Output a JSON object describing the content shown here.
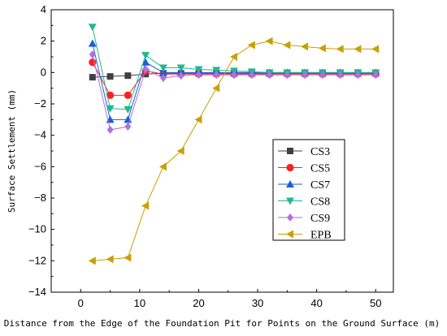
{
  "chart_data": {
    "type": "line",
    "xlabel": "Distance from the Edge of the Foundation Pit for Points on the Ground Surface (m)",
    "ylabel": "Surface Settlement (mm)",
    "xlim": [
      -5,
      53
    ],
    "ylim": [
      -14,
      4
    ],
    "xticks": [
      0,
      10,
      20,
      30,
      40,
      50
    ],
    "yticks": [
      4,
      2,
      0,
      -2,
      -4,
      -6,
      -8,
      -10,
      -12,
      -14
    ],
    "grid": false,
    "legend_position": "center-right",
    "series": [
      {
        "name": "CS3",
        "color": "#404040",
        "marker": "square",
        "x": [
          2,
          5,
          8,
          11,
          14,
          17,
          20,
          23,
          26,
          29,
          32,
          35,
          38,
          41,
          44,
          47,
          50
        ],
        "y": [
          -0.3,
          -0.25,
          -0.2,
          -0.1,
          -0.05,
          -0.05,
          -0.05,
          -0.05,
          -0.05,
          -0.05,
          -0.05,
          -0.05,
          -0.05,
          -0.05,
          -0.05,
          -0.05,
          -0.05
        ]
      },
      {
        "name": "CS5",
        "color": "#ff2020",
        "marker": "circle",
        "x": [
          2,
          5,
          8,
          11,
          14,
          17,
          20,
          23,
          26,
          29,
          32,
          35,
          38,
          41,
          44,
          47,
          50
        ],
        "y": [
          0.65,
          -1.45,
          -1.45,
          0.1,
          -0.1,
          -0.1,
          -0.1,
          -0.1,
          -0.1,
          -0.1,
          -0.1,
          -0.1,
          -0.1,
          -0.1,
          -0.1,
          -0.1,
          -0.1
        ]
      },
      {
        "name": "CS7",
        "color": "#1a5fdc",
        "marker": "triangle-up",
        "x": [
          2,
          5,
          8,
          11,
          14,
          17,
          20,
          23,
          26,
          29,
          32,
          35,
          38,
          41,
          44,
          47,
          50
        ],
        "y": [
          1.85,
          -3.0,
          -3.0,
          0.65,
          0.0,
          0.0,
          0.0,
          0.0,
          0.0,
          0.0,
          0.0,
          0.0,
          0.0,
          0.0,
          0.0,
          0.0,
          0.0
        ]
      },
      {
        "name": "CS8",
        "color": "#20b890",
        "marker": "triangle-down",
        "x": [
          2,
          5,
          8,
          11,
          14,
          17,
          20,
          23,
          26,
          29,
          32,
          35,
          38,
          41,
          44,
          47,
          50
        ],
        "y": [
          2.9,
          -2.3,
          -2.35,
          1.1,
          0.3,
          0.3,
          0.2,
          0.15,
          0.1,
          0.05,
          0.0,
          0.0,
          0.0,
          0.0,
          0.0,
          0.0,
          0.0
        ]
      },
      {
        "name": "CS9",
        "color": "#b070e0",
        "marker": "diamond",
        "x": [
          2,
          5,
          8,
          11,
          14,
          17,
          20,
          23,
          26,
          29,
          32,
          35,
          38,
          41,
          44,
          47,
          50
        ],
        "y": [
          1.15,
          -3.65,
          -3.45,
          0.2,
          -0.35,
          -0.2,
          -0.15,
          -0.15,
          -0.15,
          -0.15,
          -0.15,
          -0.15,
          -0.15,
          -0.15,
          -0.15,
          -0.15,
          -0.15
        ]
      },
      {
        "name": "EPB",
        "color": "#c8a000",
        "marker": "triangle-left",
        "x": [
          2,
          5,
          8,
          11,
          14,
          17,
          20,
          23,
          26,
          29,
          32,
          35,
          38,
          41,
          44,
          47,
          50
        ],
        "y": [
          -12.0,
          -11.9,
          -11.8,
          -8.5,
          -6.0,
          -5.0,
          -3.0,
          -1.0,
          1.0,
          1.75,
          2.0,
          1.75,
          1.65,
          1.55,
          1.5,
          1.5,
          1.5
        ]
      }
    ]
  }
}
